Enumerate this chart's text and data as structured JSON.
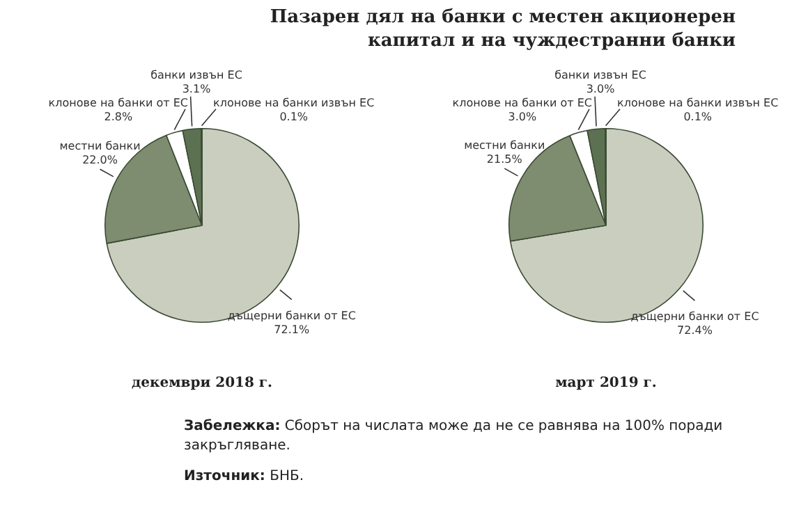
{
  "chart_data": [
    {
      "type": "pie",
      "title": "Пазарен дял на банки с местен акционерен капитал и на чуждестранни банки",
      "xlabel": "декември 2018 г.",
      "categories": [
        "дъщерни банки от ЕС",
        "местни банки",
        "клонове на банки от ЕС",
        "банки извън ЕС",
        "клонове на банки извън ЕС"
      ],
      "values": [
        72.1,
        22.0,
        2.8,
        3.1,
        0.1
      ],
      "value_labels": [
        "72.1%",
        "22.0%",
        "2.8%",
        "3.1%",
        "0.1%"
      ],
      "colors": [
        "#c9cebf",
        "#7e8c6f",
        "#ffffff",
        "#5c7151",
        "#4a5e42"
      ],
      "annotations": [
        "Забележка: Сборът на числата може да не се равнява на 100% поради закръгляване.",
        "Източник: БНБ."
      ]
    },
    {
      "type": "pie",
      "xlabel": "март 2019 г.",
      "categories": [
        "дъщерни банки от ЕС",
        "местни банки",
        "клонове на банки от ЕС",
        "банки извън ЕС",
        "клонове на банки извън ЕС"
      ],
      "values": [
        72.4,
        21.5,
        3.0,
        3.0,
        0.1
      ],
      "value_labels": [
        "72.4%",
        "21.5%",
        "3.0%",
        "3.0%",
        "0.1%"
      ],
      "colors": [
        "#c9cebf",
        "#7e8c6f",
        "#ffffff",
        "#5c7151",
        "#4a5e42"
      ]
    }
  ]
}
